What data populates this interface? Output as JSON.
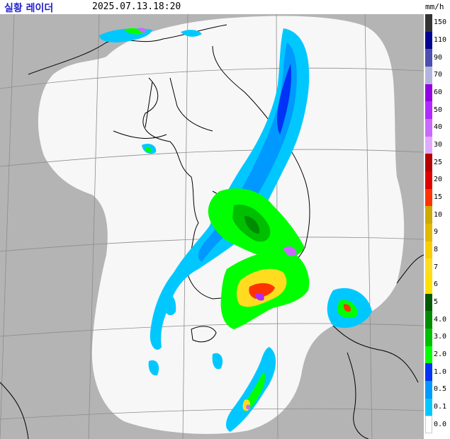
{
  "header": {
    "title": "실황 레이더",
    "timestamp": "2025.07.13.18:20",
    "unit": "mm/h"
  },
  "legend": {
    "items": [
      {
        "label": "150",
        "color": "#333333"
      },
      {
        "label": "110",
        "color": "#000390"
      },
      {
        "label": "90",
        "color": "#4c4eb1"
      },
      {
        "label": "70",
        "color": "#b3b4de"
      },
      {
        "label": "60",
        "color": "#9300e4"
      },
      {
        "label": "50",
        "color": "#b229ff"
      },
      {
        "label": "40",
        "color": "#c969ff"
      },
      {
        "label": "30",
        "color": "#e0a9ff"
      },
      {
        "label": "25",
        "color": "#b40000"
      },
      {
        "label": "20",
        "color": "#e00000"
      },
      {
        "label": "15",
        "color": "#ff3300"
      },
      {
        "label": "10",
        "color": "#ccaa00"
      },
      {
        "label": "9",
        "color": "#e0b900"
      },
      {
        "label": "8",
        "color": "#f9cd00"
      },
      {
        "label": "7",
        "color": "#ffdc1f"
      },
      {
        "label": "6",
        "color": "#ffe100"
      },
      {
        "label": "5",
        "color": "#005a00"
      },
      {
        "label": "4.0",
        "color": "#008c00"
      },
      {
        "label": "3.0",
        "color": "#00be00"
      },
      {
        "label": "2.0",
        "color": "#00ff00"
      },
      {
        "label": "1.0",
        "color": "#0033f5"
      },
      {
        "label": "0.5",
        "color": "#0099ff"
      },
      {
        "label": "0.1",
        "color": "#00c8ff"
      },
      {
        "label": "0.0",
        "color": "#ffffff"
      }
    ]
  },
  "colors": {
    "background_outside": "#b4b4b4",
    "coverage_area": "#f7f7f7",
    "grid": "#8c8c8c",
    "coastline": "#000000"
  }
}
